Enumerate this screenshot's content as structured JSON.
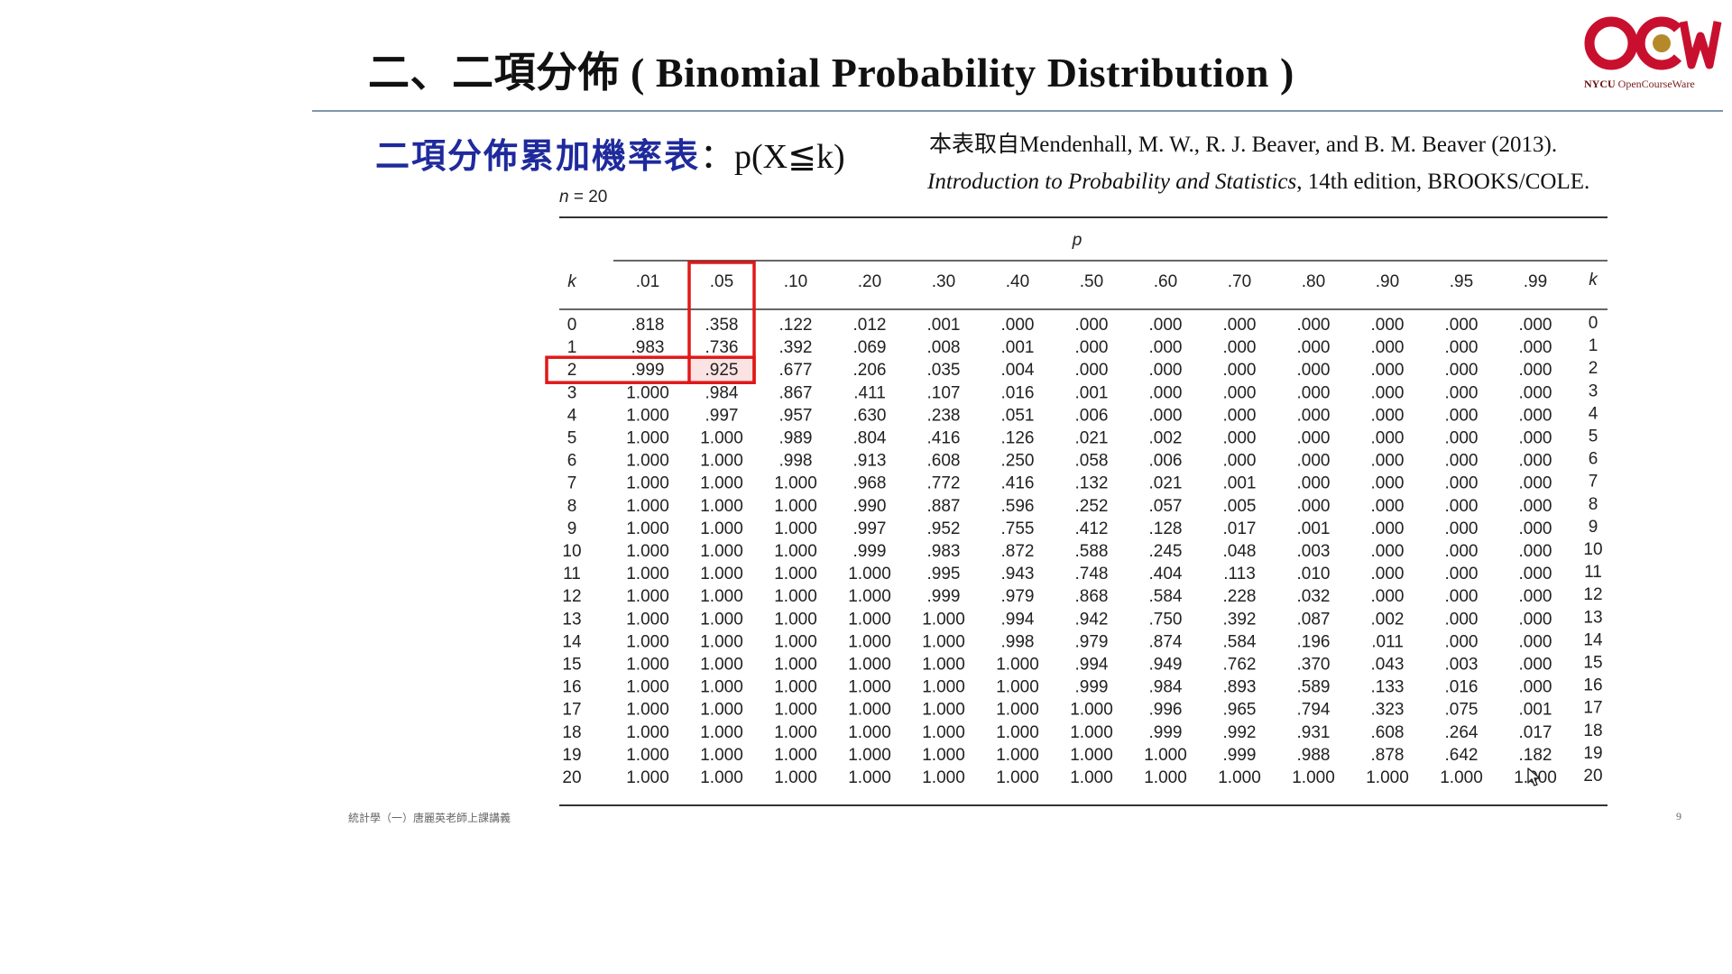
{
  "slide": {
    "title": "二、二項分佈 ( Binomial Probability Distribution )",
    "subtitle_cn": "二項分佈累加機率表",
    "subtitle_formula": "：p(X≦k)",
    "source_line1": "本表取自Mendenhall, M. W., R. J. Beaver, and B. M. Beaver (2013).",
    "source_line2_italic": "Introduction to Probability and Statistics",
    "source_line2_rest": ", 14th edition, BROOKS/COLE.",
    "footer_left": "統計學（一）唐麗英老師上課講義",
    "page_number": "9"
  },
  "logo": {
    "name": "OCW",
    "caption_bold": "NYCU",
    "caption_rest": " OpenCourseWare",
    "colors": {
      "red": "#c8102e",
      "gold": "#b5892a"
    }
  },
  "table": {
    "n_label_var": "n",
    "n_label_rest": " = 20",
    "p_header": "p",
    "k_header": "k",
    "columns": [
      ".01",
      ".05",
      ".10",
      ".20",
      ".30",
      ".40",
      ".50",
      ".60",
      ".70",
      ".80",
      ".90",
      ".95",
      ".99"
    ],
    "rows": [
      {
        "k": "0",
        "v": [
          ".818",
          ".358",
          ".122",
          ".012",
          ".001",
          ".000",
          ".000",
          ".000",
          ".000",
          ".000",
          ".000",
          ".000",
          ".000"
        ]
      },
      {
        "k": "1",
        "v": [
          ".983",
          ".736",
          ".392",
          ".069",
          ".008",
          ".001",
          ".000",
          ".000",
          ".000",
          ".000",
          ".000",
          ".000",
          ".000"
        ]
      },
      {
        "k": "2",
        "v": [
          ".999",
          ".925",
          ".677",
          ".206",
          ".035",
          ".004",
          ".000",
          ".000",
          ".000",
          ".000",
          ".000",
          ".000",
          ".000"
        ]
      },
      {
        "k": "3",
        "v": [
          "1.000",
          ".984",
          ".867",
          ".411",
          ".107",
          ".016",
          ".001",
          ".000",
          ".000",
          ".000",
          ".000",
          ".000",
          ".000"
        ]
      },
      {
        "k": "4",
        "v": [
          "1.000",
          ".997",
          ".957",
          ".630",
          ".238",
          ".051",
          ".006",
          ".000",
          ".000",
          ".000",
          ".000",
          ".000",
          ".000"
        ]
      },
      {
        "k": "5",
        "v": [
          "1.000",
          "1.000",
          ".989",
          ".804",
          ".416",
          ".126",
          ".021",
          ".002",
          ".000",
          ".000",
          ".000",
          ".000",
          ".000"
        ]
      },
      {
        "k": "6",
        "v": [
          "1.000",
          "1.000",
          ".998",
          ".913",
          ".608",
          ".250",
          ".058",
          ".006",
          ".000",
          ".000",
          ".000",
          ".000",
          ".000"
        ]
      },
      {
        "k": "7",
        "v": [
          "1.000",
          "1.000",
          "1.000",
          ".968",
          ".772",
          ".416",
          ".132",
          ".021",
          ".001",
          ".000",
          ".000",
          ".000",
          ".000"
        ]
      },
      {
        "k": "8",
        "v": [
          "1.000",
          "1.000",
          "1.000",
          ".990",
          ".887",
          ".596",
          ".252",
          ".057",
          ".005",
          ".000",
          ".000",
          ".000",
          ".000"
        ]
      },
      {
        "k": "9",
        "v": [
          "1.000",
          "1.000",
          "1.000",
          ".997",
          ".952",
          ".755",
          ".412",
          ".128",
          ".017",
          ".001",
          ".000",
          ".000",
          ".000"
        ]
      },
      {
        "k": "10",
        "v": [
          "1.000",
          "1.000",
          "1.000",
          ".999",
          ".983",
          ".872",
          ".588",
          ".245",
          ".048",
          ".003",
          ".000",
          ".000",
          ".000"
        ]
      },
      {
        "k": "11",
        "v": [
          "1.000",
          "1.000",
          "1.000",
          "1.000",
          ".995",
          ".943",
          ".748",
          ".404",
          ".113",
          ".010",
          ".000",
          ".000",
          ".000"
        ]
      },
      {
        "k": "12",
        "v": [
          "1.000",
          "1.000",
          "1.000",
          "1.000",
          ".999",
          ".979",
          ".868",
          ".584",
          ".228",
          ".032",
          ".000",
          ".000",
          ".000"
        ]
      },
      {
        "k": "13",
        "v": [
          "1.000",
          "1.000",
          "1.000",
          "1.000",
          "1.000",
          ".994",
          ".942",
          ".750",
          ".392",
          ".087",
          ".002",
          ".000",
          ".000"
        ]
      },
      {
        "k": "14",
        "v": [
          "1.000",
          "1.000",
          "1.000",
          "1.000",
          "1.000",
          ".998",
          ".979",
          ".874",
          ".584",
          ".196",
          ".011",
          ".000",
          ".000"
        ]
      },
      {
        "k": "15",
        "v": [
          "1.000",
          "1.000",
          "1.000",
          "1.000",
          "1.000",
          "1.000",
          ".994",
          ".949",
          ".762",
          ".370",
          ".043",
          ".003",
          ".000"
        ]
      },
      {
        "k": "16",
        "v": [
          "1.000",
          "1.000",
          "1.000",
          "1.000",
          "1.000",
          "1.000",
          ".999",
          ".984",
          ".893",
          ".589",
          ".133",
          ".016",
          ".000"
        ]
      },
      {
        "k": "17",
        "v": [
          "1.000",
          "1.000",
          "1.000",
          "1.000",
          "1.000",
          "1.000",
          "1.000",
          ".996",
          ".965",
          ".794",
          ".323",
          ".075",
          ".001"
        ]
      },
      {
        "k": "18",
        "v": [
          "1.000",
          "1.000",
          "1.000",
          "1.000",
          "1.000",
          "1.000",
          "1.000",
          ".999",
          ".992",
          ".931",
          ".608",
          ".264",
          ".017"
        ]
      },
      {
        "k": "19",
        "v": [
          "1.000",
          "1.000",
          "1.000",
          "1.000",
          "1.000",
          "1.000",
          "1.000",
          "1.000",
          ".999",
          ".988",
          ".878",
          ".642",
          ".182"
        ]
      },
      {
        "k": "20",
        "v": [
          "1.000",
          "1.000",
          "1.000",
          "1.000",
          "1.000",
          "1.000",
          "1.000",
          "1.000",
          "1.000",
          "1.000",
          "1.000",
          "1.000",
          "1.000"
        ]
      }
    ],
    "highlight": {
      "column": ".05",
      "row_k": "2",
      "color": "#e01818",
      "cell_fill": "#fbe3e3"
    }
  },
  "icons": {
    "cursor": "mouse-pointer-icon"
  }
}
